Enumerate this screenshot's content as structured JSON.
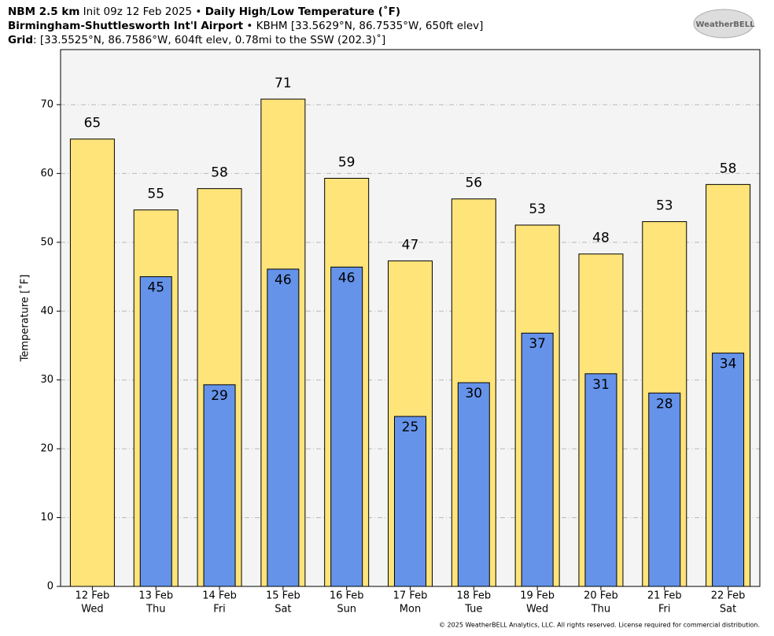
{
  "chart_data": {
    "type": "bar",
    "title_lines": [
      [
        {
          "text": "NBM 2.5 km",
          "bold": true
        },
        {
          "text": " Init 09z 12 Feb 2025 • ",
          "bold": false
        },
        {
          "text": "Daily High/Low Temperature (˚F)",
          "bold": true
        }
      ],
      [
        {
          "text": "Birmingham-Shuttlesworth Int'l Airport",
          "bold": true
        },
        {
          "text": " • KBHM [33.5629°N, 86.7535°W, 650ft elev]",
          "bold": false
        }
      ],
      [
        {
          "text": "Grid",
          "bold": true
        },
        {
          "text": ": [33.5525°N, 86.7586°W, 604ft elev, 0.78mi to the SSW (202.3)˚]",
          "bold": false
        }
      ]
    ],
    "logo": "WeatherBELL",
    "footer": "© 2025 WeatherBELL Analytics, LLC. All rights reserved. License required for commercial distribution.",
    "y_label": "Temperature [˚F]",
    "categories": [
      [
        "12 Feb",
        "Wed"
      ],
      [
        "13 Feb",
        "Thu"
      ],
      [
        "14 Feb",
        "Fri"
      ],
      [
        "15 Feb",
        "Sat"
      ],
      [
        "16 Feb",
        "Sun"
      ],
      [
        "17 Feb",
        "Mon"
      ],
      [
        "18 Feb",
        "Tue"
      ],
      [
        "19 Feb",
        "Wed"
      ],
      [
        "20 Feb",
        "Thu"
      ],
      [
        "21 Feb",
        "Fri"
      ],
      [
        "22 Feb",
        "Sat"
      ]
    ],
    "series": [
      {
        "color": "#ffe47a",
        "values": [
          65.0,
          54.7,
          57.8,
          70.8,
          59.3,
          47.3,
          56.3,
          52.5,
          48.3,
          53.0,
          58.4
        ],
        "value_labels": [
          "65",
          "55",
          "58",
          "71",
          "59",
          "47",
          "56",
          "53",
          "48",
          "53",
          "58"
        ]
      },
      {
        "color": "#6593ea",
        "values": [
          null,
          45.0,
          29.3,
          46.1,
          46.4,
          24.7,
          29.6,
          36.8,
          30.9,
          28.1,
          33.9
        ],
        "value_labels": [
          null,
          "45",
          "29",
          "46",
          "46",
          "25",
          "30",
          "37",
          "31",
          "28",
          "34"
        ]
      }
    ],
    "ylim": [
      0,
      78
    ],
    "yticks": [
      0,
      10,
      20,
      30,
      40,
      50,
      60,
      70
    ],
    "grid": true
  }
}
